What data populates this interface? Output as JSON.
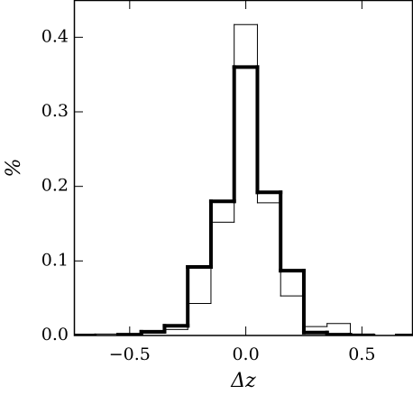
{
  "chart_data": {
    "type": "histogram",
    "x_label": "Δz",
    "y_label": "%",
    "bins": [
      -0.75,
      -0.65,
      -0.55,
      -0.45,
      -0.35,
      -0.25,
      -0.15,
      -0.05,
      0.05,
      0.15,
      0.25,
      0.35,
      0.45,
      0.55,
      0.65,
      0.75
    ],
    "series": [
      {
        "color": "#000000",
        "linewidth": 1,
        "values": [
          0,
          0.002,
          0.001,
          0.003,
          0.008,
          0.043,
          0.152,
          0.417,
          0.178,
          0.053,
          0.012,
          0.016,
          0.002,
          0,
          0
        ]
      },
      {
        "color": "#000000",
        "linewidth": 4,
        "values": [
          0,
          null,
          0.001,
          0.005,
          0.013,
          0.092,
          0.18,
          0.36,
          0.192,
          0.087,
          0.004,
          0.001,
          0,
          null,
          0
        ]
      }
    ],
    "xlim": [
      -0.74,
      0.72
    ],
    "ylim": [
      0,
      0.45
    ],
    "xticks": [
      {
        "value": -0.5,
        "label": "−0.5"
      },
      {
        "value": 0,
        "label": "0.0"
      },
      {
        "value": 0.5,
        "label": "0.5"
      }
    ],
    "yticks": [
      {
        "value": 0,
        "label": "0.0"
      },
      0.1,
      0.2,
      0.3,
      0.4
    ]
  }
}
